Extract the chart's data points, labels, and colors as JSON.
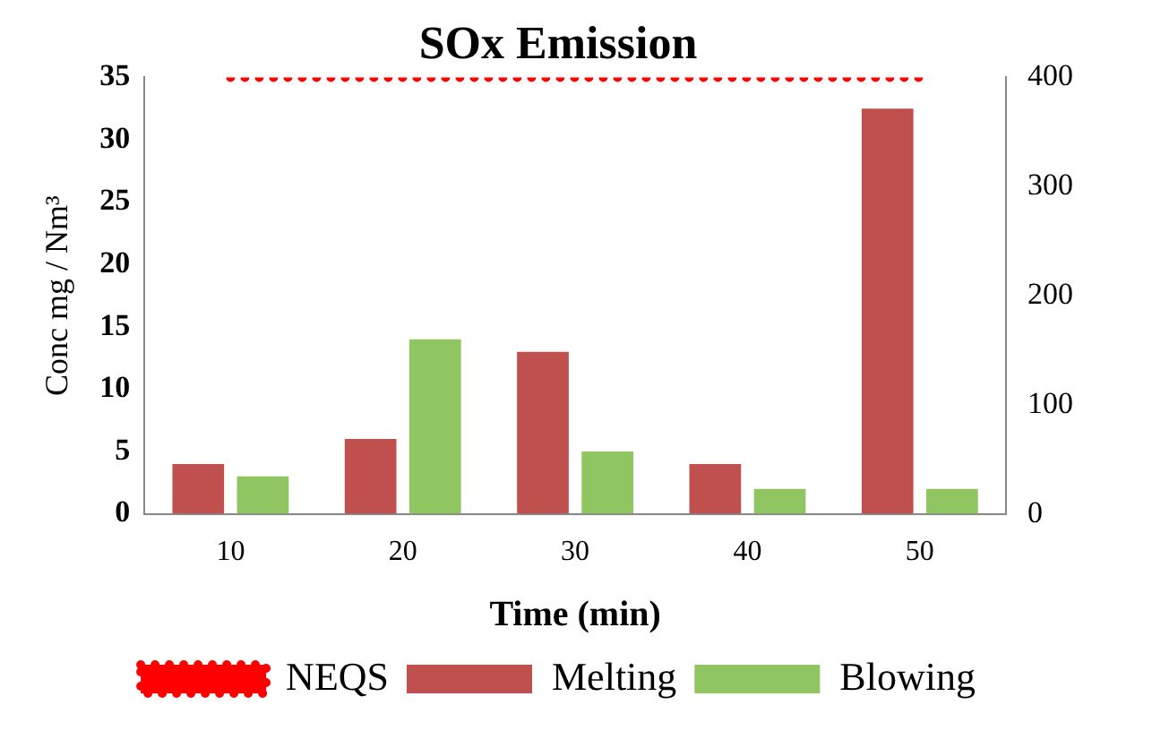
{
  "chart_data": {
    "type": "bar",
    "title": "SOx Emission",
    "xlabel": "Time (min)",
    "ylabel": "Conc mg / Nm³",
    "categories": [
      "10",
      "20",
      "30",
      "40",
      "50"
    ],
    "series": [
      {
        "name": "Melting",
        "color": "#c0504d",
        "values": [
          4,
          6,
          13,
          4,
          32.5
        ]
      },
      {
        "name": "Blowing",
        "color": "#8fc661",
        "values": [
          3,
          14,
          5,
          2,
          2
        ]
      },
      {
        "name": "NEQS",
        "type": "line",
        "axis": "y2",
        "color": "#ff0000",
        "line_style": "dotted",
        "marker": "none",
        "values": [
          400,
          400,
          400,
          400,
          400
        ]
      }
    ],
    "ylim": [
      0,
      35
    ],
    "yticks": [
      0,
      5,
      10,
      15,
      20,
      25,
      30,
      35
    ],
    "y2lim": [
      0,
      400
    ],
    "y2ticks": [
      0,
      100,
      200,
      300,
      400
    ],
    "grid": false,
    "legend": "bottom"
  }
}
